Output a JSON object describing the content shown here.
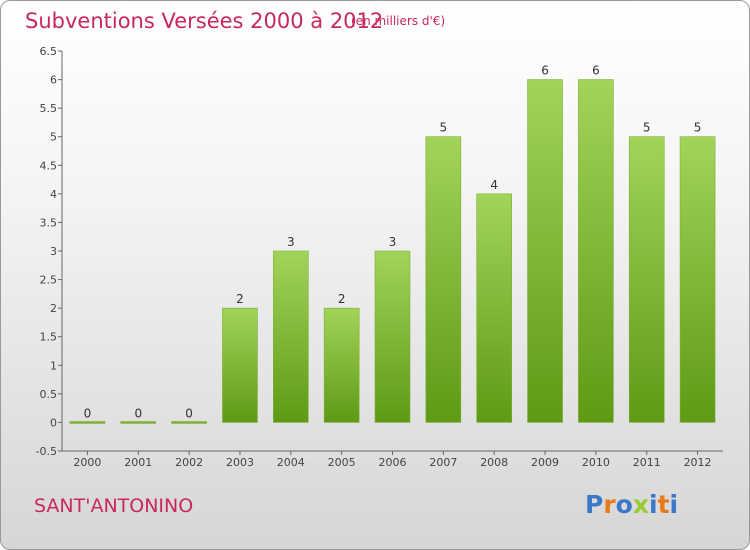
{
  "title": "Subventions Versées 2000 à 2012",
  "subtitle": "(en milliers d'€)",
  "municipality": "SANT'ANTONINO",
  "brand": {
    "text": "Proxiti",
    "letters": [
      "P",
      "r",
      "o",
      "x",
      "i",
      "t",
      "i"
    ],
    "colors": [
      "#3a78c8",
      "#e87a1a",
      "#3a78c8",
      "#9acb33",
      "#3a78c8",
      "#e87a1a",
      "#3a78c8"
    ]
  },
  "colors": {
    "bar_top": "#a2d45a",
    "bar_bottom": "#5e9a14",
    "accent": "#c8285a"
  },
  "chart_data": {
    "type": "bar",
    "categories": [
      "2000",
      "2001",
      "2002",
      "2003",
      "2004",
      "2005",
      "2006",
      "2007",
      "2008",
      "2009",
      "2010",
      "2011",
      "2012"
    ],
    "values": [
      0,
      0,
      0,
      2,
      3,
      2,
      3,
      5,
      4,
      6,
      6,
      5,
      5
    ],
    "value_labels": [
      "0",
      "0",
      "0",
      "2",
      "3",
      "2",
      "3",
      "5",
      "4",
      "6",
      "6",
      "5",
      "5"
    ],
    "ylim": [
      -0.5,
      6.5
    ],
    "yticks": [
      "-0.5",
      "0",
      "0.5",
      "1",
      "1.5",
      "2",
      "2.5",
      "3",
      "3.5",
      "4",
      "4.5",
      "5",
      "5.5",
      "6",
      "6.5"
    ],
    "ytick_values": [
      -0.5,
      0,
      0.5,
      1,
      1.5,
      2,
      2.5,
      3,
      3.5,
      4,
      4.5,
      5,
      5.5,
      6,
      6.5
    ],
    "xlabel": "",
    "ylabel": "",
    "grid": false,
    "legend": "none"
  }
}
